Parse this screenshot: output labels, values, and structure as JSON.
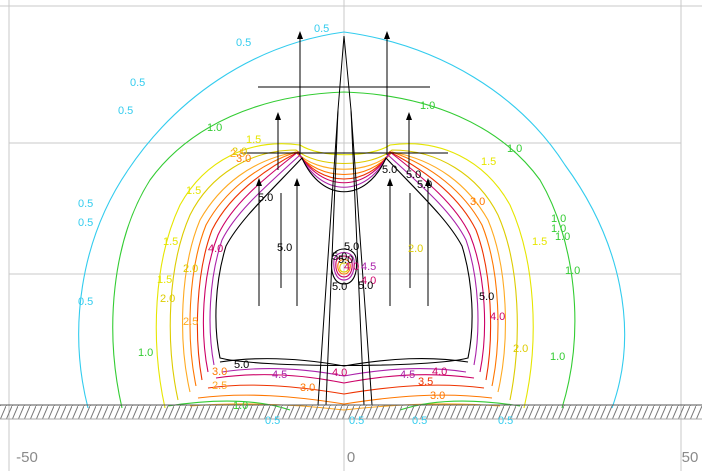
{
  "chart_data": {
    "type": "contour",
    "title": "",
    "xlabel": "",
    "ylabel": "",
    "xlim": [
      -50,
      50
    ],
    "x_ticks": [
      "-50",
      "0",
      "50"
    ],
    "grid": true,
    "levels": [
      {
        "value": "0.5",
        "color": "#33ccee"
      },
      {
        "value": "1.0",
        "color": "#33cc33"
      },
      {
        "value": "1.5",
        "color": "#e6e600"
      },
      {
        "value": "2.0",
        "color": "#ddcc00"
      },
      {
        "value": "2.5",
        "color": "#ffaa22"
      },
      {
        "value": "3.0",
        "color": "#ff7700"
      },
      {
        "value": "3.5",
        "color": "#ee3300"
      },
      {
        "value": "4.0",
        "color": "#cc0066"
      },
      {
        "value": "4.5",
        "color": "#aa22aa"
      },
      {
        "value": "5.0",
        "color": "#000000"
      }
    ],
    "contour_labels": [
      {
        "text": "0.5",
        "level": "0.5"
      },
      {
        "text": "0.5",
        "level": "0.5"
      },
      {
        "text": "0.5",
        "level": "0.5"
      },
      {
        "text": "0.5",
        "level": "0.5"
      },
      {
        "text": "0.5",
        "level": "0.5"
      },
      {
        "text": "0.5",
        "level": "0.5"
      },
      {
        "text": "0.5",
        "level": "0.5"
      },
      {
        "text": "0.5",
        "level": "0.5"
      },
      {
        "text": "0.5",
        "level": "0.5"
      },
      {
        "text": "0.5",
        "level": "0.5"
      },
      {
        "text": "0.5",
        "level": "0.5"
      },
      {
        "text": "1.0",
        "level": "1.0"
      },
      {
        "text": "1.0",
        "level": "1.0"
      },
      {
        "text": "1.0",
        "level": "1.0"
      },
      {
        "text": "1.0",
        "level": "1.0"
      },
      {
        "text": "1.0",
        "level": "1.0"
      },
      {
        "text": "1.0",
        "level": "1.0"
      },
      {
        "text": "1.0",
        "level": "1.0"
      },
      {
        "text": "1.0",
        "level": "1.0"
      },
      {
        "text": "1.0",
        "level": "1.0"
      },
      {
        "text": "1.0",
        "level": "1.0"
      },
      {
        "text": "1.5",
        "level": "1.5"
      },
      {
        "text": "1.5",
        "level": "1.5"
      },
      {
        "text": "1.5",
        "level": "1.5"
      },
      {
        "text": "1.5",
        "level": "1.5"
      },
      {
        "text": "1.5",
        "level": "1.5"
      },
      {
        "text": "1.5",
        "level": "1.5"
      },
      {
        "text": "2.0",
        "level": "2.0"
      },
      {
        "text": "2.0",
        "level": "2.0"
      },
      {
        "text": "2.0",
        "level": "2.0"
      },
      {
        "text": "2.0",
        "level": "2.0"
      },
      {
        "text": "2.0",
        "level": "2.0"
      },
      {
        "text": "2.5",
        "level": "2.5"
      },
      {
        "text": "2.5",
        "level": "2.5"
      },
      {
        "text": "2.5",
        "level": "2.5"
      },
      {
        "text": "3.0",
        "level": "3.0"
      },
      {
        "text": "3.0",
        "level": "3.0"
      },
      {
        "text": "3.0",
        "level": "3.0"
      },
      {
        "text": "3.0",
        "level": "3.0"
      },
      {
        "text": "3.0",
        "level": "3.0"
      },
      {
        "text": "3.5",
        "level": "3.5"
      },
      {
        "text": "4.0",
        "level": "4.0"
      },
      {
        "text": "4.0",
        "level": "4.0"
      },
      {
        "text": "4.0",
        "level": "4.0"
      },
      {
        "text": "4.0",
        "level": "4.0"
      },
      {
        "text": "4.0",
        "level": "4.0"
      },
      {
        "text": "4.0",
        "level": "4.0"
      },
      {
        "text": "4.5",
        "level": "4.5"
      },
      {
        "text": "4.5",
        "level": "4.5"
      },
      {
        "text": "4.5",
        "level": "4.5"
      },
      {
        "text": "5.0",
        "level": "5.0"
      },
      {
        "text": "5.0",
        "level": "5.0"
      },
      {
        "text": "5.0",
        "level": "5.0"
      },
      {
        "text": "5.0",
        "level": "5.0"
      },
      {
        "text": "5.0",
        "level": "5.0"
      },
      {
        "text": "5.0",
        "level": "5.0"
      },
      {
        "text": "5.0",
        "level": "5.0"
      },
      {
        "text": "5.0",
        "level": "5.0"
      },
      {
        "text": "5.0",
        "level": "5.0"
      },
      {
        "text": "5.0",
        "level": "5.0"
      },
      {
        "text": "5.0",
        "level": "5.0"
      },
      {
        "text": "5.0",
        "level": "5.0"
      }
    ]
  }
}
